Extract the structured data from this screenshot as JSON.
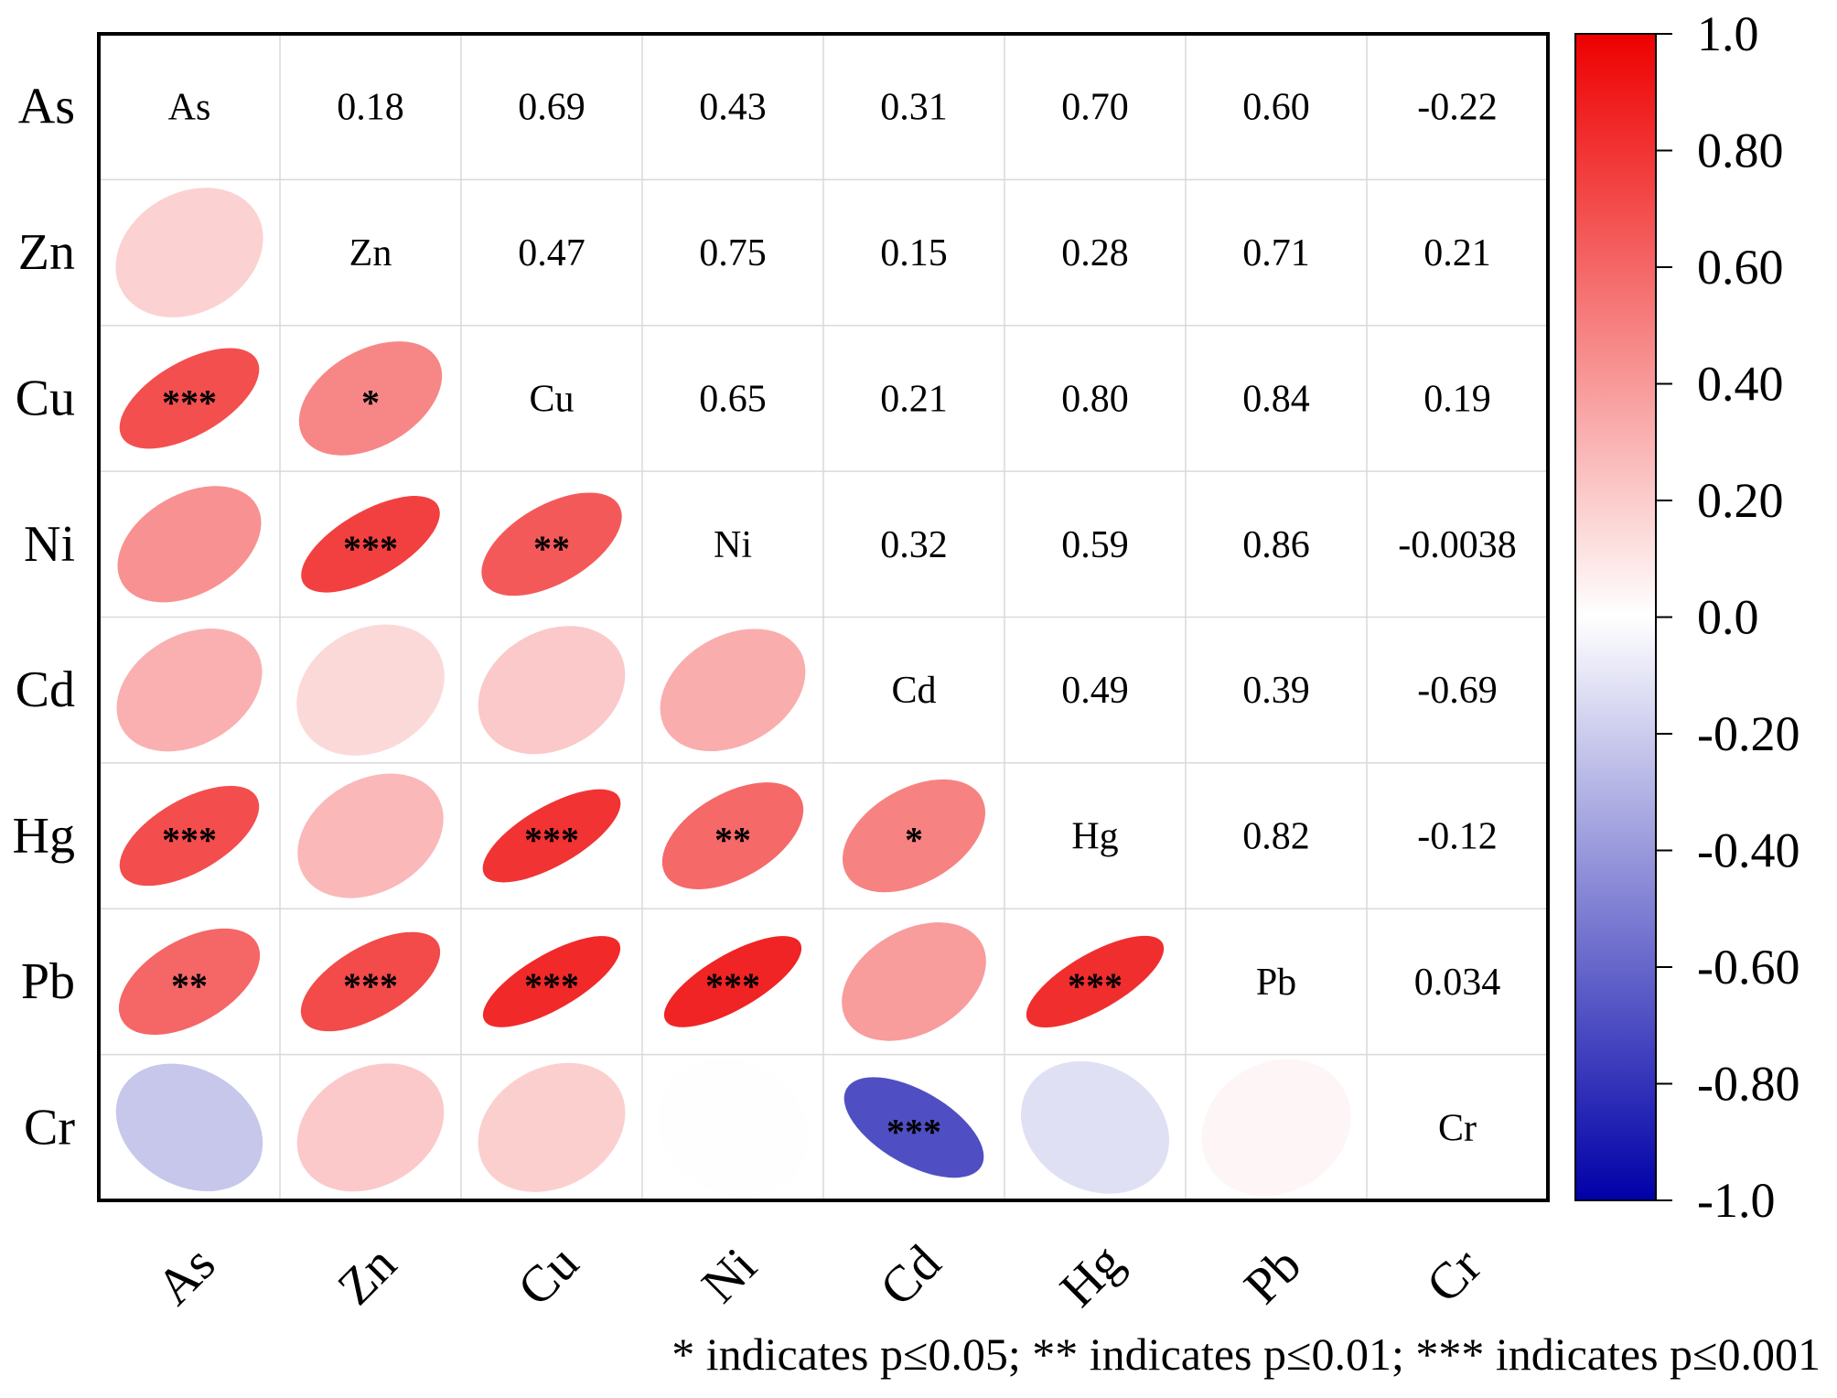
{
  "chart_data": {
    "type": "heatmap",
    "variables": [
      "As",
      "Zn",
      "Cu",
      "Ni",
      "Cd",
      "Hg",
      "Pb",
      "Cr"
    ],
    "matrix_labels": [
      [
        "As",
        "0.18",
        "0.69",
        "0.43",
        "0.31",
        "0.70",
        "0.60",
        "-0.22"
      ],
      [
        "0.18",
        "Zn",
        "0.47",
        "0.75",
        "0.15",
        "0.28",
        "0.71",
        "0.21"
      ],
      [
        "0.69",
        "0.47",
        "Cu",
        "0.65",
        "0.21",
        "0.80",
        "0.84",
        "0.19"
      ],
      [
        "0.43",
        "0.75",
        "0.65",
        "Ni",
        "0.32",
        "0.59",
        "0.86",
        "-0.0038"
      ],
      [
        "0.31",
        "0.15",
        "0.21",
        "0.32",
        "Cd",
        "0.49",
        "0.39",
        "-0.69"
      ],
      [
        "0.70",
        "0.28",
        "0.80",
        "0.59",
        "0.49",
        "Hg",
        "0.82",
        "-0.12"
      ],
      [
        "0.60",
        "0.71",
        "0.84",
        "0.86",
        "0.39",
        "0.82",
        "Pb",
        "0.034"
      ],
      [
        "-0.22",
        "0.21",
        "0.19",
        "-0.0038",
        "-0.69",
        "-0.12",
        "0.034",
        "Cr"
      ]
    ],
    "significance": [
      [
        "",
        "",
        "",
        "",
        "",
        "",
        "",
        ""
      ],
      [
        "",
        "",
        "",
        "",
        "",
        "",
        "",
        ""
      ],
      [
        "***",
        "*",
        "",
        "",
        "",
        "",
        "",
        ""
      ],
      [
        "",
        "***",
        "**",
        "",
        "",
        "",
        "",
        ""
      ],
      [
        "",
        "",
        "",
        "",
        "",
        "",
        "",
        ""
      ],
      [
        "***",
        "",
        "***",
        "**",
        "*",
        "",
        "",
        ""
      ],
      [
        "**",
        "***",
        "***",
        "***",
        "",
        "***",
        "",
        ""
      ],
      [
        "",
        "",
        "",
        "",
        "***",
        "",
        "",
        ""
      ]
    ],
    "colorbar": {
      "range": [
        -1.0,
        1.0
      ],
      "ticks": [
        "1.0",
        "0.80",
        "0.60",
        "0.40",
        "0.20",
        "0.0",
        "-0.20",
        "-0.40",
        "-0.60",
        "-0.80",
        "-1.0"
      ],
      "colors": {
        "low": "#0000a8",
        "mid": "#ffffff",
        "high": "#ee0000"
      }
    },
    "footnote": "* indicates p≤0.05; ** indicates p≤0.01; *** indicates p≤0.001"
  }
}
